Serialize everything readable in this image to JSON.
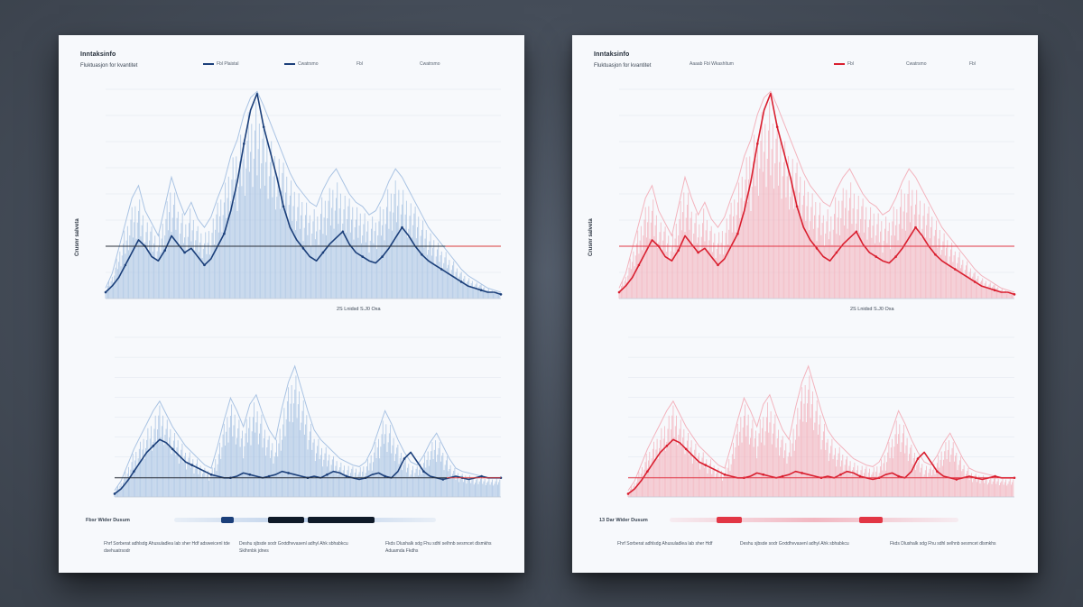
{
  "charts": [
    {
      "id": "left",
      "theme": {
        "accent": "#1b3f7a",
        "light": "#a9c3e3",
        "threshold": "#2a2f38",
        "threshold_tail": "#d93a3a"
      },
      "header": {
        "title": "Inntaksinfo",
        "subtitle": "Fluktuasjon for kvantitet"
      },
      "legend": [
        "Fbl Plaistal",
        "Cwatrsmo",
        "Fbl",
        "Cwatrsmo"
      ],
      "side_label": "Crusnr salveta",
      "mid_caption": "2S Lnidsd S.J0 Oxa",
      "bottom_label": "Fbsr Wider Dusum",
      "footnotes": [
        "Fhrf Sorberat adhlsdg Ahusuladlea lab sher Hdf adsweicenl tde dsehuatrsodr",
        "Deshu sjbsde sodr Grxtdhvvasenl adhyl Ahk sbhabkcu Sklhrnbk jdnes",
        "Fkds Dlushalk sdg Fhu sdhl selhnb sesrncet dlsmkhs Aduamda Fkdhs"
      ]
    },
    {
      "id": "right",
      "theme": {
        "accent": "#d91f2f",
        "light": "#f3b3bd",
        "threshold": "#e23645",
        "threshold_tail": "#e23645"
      },
      "header": {
        "title": "Inntaksinfo",
        "subtitle": "Fluktuasjon for kvantitet"
      },
      "legend": [
        "Aaaab Fbl Wkashltum",
        "Fbl",
        "Cwatrsmo",
        "Fbl"
      ],
      "side_label": "Crusnr salveta",
      "mid_caption": "2S Lnidsd S.J0 Oxa",
      "bottom_label": "13 Dar Wider Dusum",
      "footnotes": [
        "Fhrf Sorberat adhlsdg Ahusuladlea lab sher Hdf",
        "Deshu sjbsde sodr Grxtdhvvasenl adhyl Ahk sbhabkcu",
        "Fkds Dlushalk sdg Fhu sdhl selhnb sesrncet dlsmkhs"
      ]
    }
  ],
  "chart_data": [
    {
      "type": "line",
      "title": "",
      "panel": "upper",
      "ylim": [
        0,
        10
      ],
      "threshold": 2.5,
      "x": [
        0,
        1,
        2,
        3,
        4,
        5,
        6,
        7,
        8,
        9,
        10,
        11,
        12,
        13,
        14,
        15,
        16,
        17,
        18,
        19,
        20,
        21,
        22,
        23,
        24,
        25,
        26,
        27,
        28,
        29,
        30,
        31,
        32,
        33,
        34,
        35,
        36,
        37,
        38,
        39,
        40,
        41,
        42,
        43,
        44,
        45,
        46,
        47,
        48,
        49,
        50,
        51,
        52,
        53,
        54,
        55,
        56,
        57,
        58,
        59,
        60
      ],
      "series": [
        {
          "values": [
            0.3,
            0.6,
            1.0,
            1.6,
            2.2,
            2.8,
            2.5,
            2.0,
            1.8,
            2.3,
            3.0,
            2.6,
            2.2,
            2.4,
            2.0,
            1.6,
            1.9,
            2.5,
            3.1,
            4.2,
            5.6,
            7.4,
            9.0,
            9.8,
            8.2,
            7.0,
            5.8,
            4.4,
            3.4,
            2.8,
            2.4,
            2.0,
            1.8,
            2.2,
            2.6,
            2.9,
            3.2,
            2.6,
            2.2,
            2.0,
            1.8,
            1.7,
            2.0,
            2.4,
            2.9,
            3.4,
            3.0,
            2.5,
            2.1,
            1.8,
            1.6,
            1.4,
            1.2,
            1.0,
            0.8,
            0.6,
            0.5,
            0.4,
            0.3,
            0.3,
            0.2
          ]
        },
        {
          "values": [
            0.5,
            1.2,
            2.4,
            3.6,
            4.8,
            5.4,
            4.2,
            3.6,
            3.0,
            4.4,
            5.8,
            4.8,
            4.0,
            4.6,
            3.8,
            3.4,
            3.9,
            4.8,
            5.6,
            6.8,
            7.6,
            8.8,
            9.6,
            9.9,
            9.2,
            8.4,
            7.6,
            6.8,
            6.0,
            5.4,
            5.0,
            4.6,
            4.4,
            5.2,
            5.8,
            6.2,
            5.6,
            5.0,
            4.6,
            4.4,
            4.0,
            4.2,
            4.8,
            5.6,
            6.2,
            5.8,
            5.2,
            4.6,
            4.0,
            3.4,
            3.0,
            2.6,
            2.2,
            1.8,
            1.4,
            1.1,
            0.9,
            0.7,
            0.5,
            0.4,
            0.3
          ]
        }
      ]
    },
    {
      "type": "line",
      "title": "",
      "panel": "lower",
      "ylim": [
        0,
        10
      ],
      "threshold": 1.2,
      "x": [
        0,
        1,
        2,
        3,
        4,
        5,
        6,
        7,
        8,
        9,
        10,
        11,
        12,
        13,
        14,
        15,
        16,
        17,
        18,
        19,
        20,
        21,
        22,
        23,
        24,
        25,
        26,
        27,
        28,
        29,
        30,
        31,
        32,
        33,
        34,
        35,
        36,
        37,
        38,
        39,
        40,
        41,
        42,
        43,
        44,
        45,
        46,
        47,
        48,
        49,
        50,
        51,
        52,
        53,
        54,
        55,
        56,
        57,
        58,
        59,
        60
      ],
      "series": [
        {
          "values": [
            0.2,
            0.5,
            1.0,
            1.6,
            2.2,
            2.8,
            3.2,
            3.6,
            3.4,
            3.0,
            2.6,
            2.2,
            2.0,
            1.8,
            1.6,
            1.4,
            1.3,
            1.2,
            1.2,
            1.3,
            1.5,
            1.4,
            1.3,
            1.2,
            1.3,
            1.4,
            1.6,
            1.5,
            1.4,
            1.3,
            1.2,
            1.3,
            1.2,
            1.4,
            1.6,
            1.5,
            1.3,
            1.2,
            1.1,
            1.2,
            1.4,
            1.5,
            1.3,
            1.2,
            1.6,
            2.4,
            2.8,
            2.2,
            1.6,
            1.3,
            1.2,
            1.1,
            1.2,
            1.3,
            1.2,
            1.1,
            1.2,
            1.3,
            1.2,
            1.2,
            1.2
          ]
        },
        {
          "values": [
            0.4,
            1.0,
            2.0,
            3.0,
            3.8,
            4.6,
            5.4,
            6.0,
            5.2,
            4.4,
            3.8,
            3.2,
            2.8,
            2.4,
            2.0,
            1.8,
            3.2,
            4.8,
            6.2,
            5.4,
            4.4,
            5.8,
            6.4,
            5.2,
            4.2,
            3.6,
            5.6,
            7.2,
            8.2,
            6.8,
            5.4,
            4.2,
            3.6,
            3.2,
            2.8,
            2.4,
            2.2,
            2.0,
            1.9,
            2.2,
            3.0,
            4.2,
            5.4,
            4.6,
            3.6,
            2.8,
            2.2,
            2.0,
            2.6,
            3.4,
            4.0,
            3.2,
            2.4,
            1.8,
            1.6,
            1.5,
            1.4,
            1.3,
            1.2,
            1.2,
            1.2
          ]
        }
      ]
    }
  ]
}
